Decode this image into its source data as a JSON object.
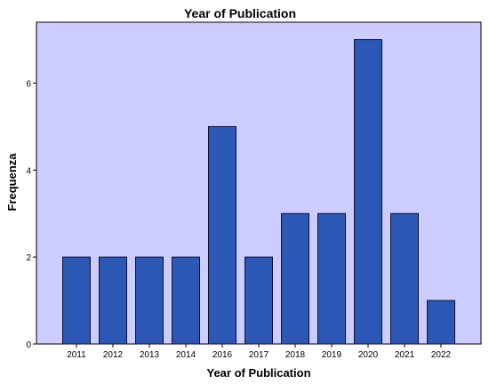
{
  "chart_data": {
    "type": "bar",
    "title": "Year of Publication",
    "xlabel": "Year of Publication",
    "ylabel": "Frequenza",
    "categories": [
      "2011",
      "2012",
      "2013",
      "2014",
      "2016",
      "2017",
      "2018",
      "2019",
      "2020",
      "2021",
      "2022"
    ],
    "values": [
      2,
      2,
      2,
      2,
      5,
      2,
      3,
      3,
      7,
      3,
      1
    ],
    "ylim": [
      0,
      7.4
    ],
    "yticks": [
      0,
      2,
      4,
      6
    ],
    "grid": false,
    "legend": "none",
    "colors": {
      "plot_background": "#ccccff",
      "bar_fill": "#2b57b5",
      "bar_stroke": "#111133",
      "axis": "#000000"
    }
  }
}
